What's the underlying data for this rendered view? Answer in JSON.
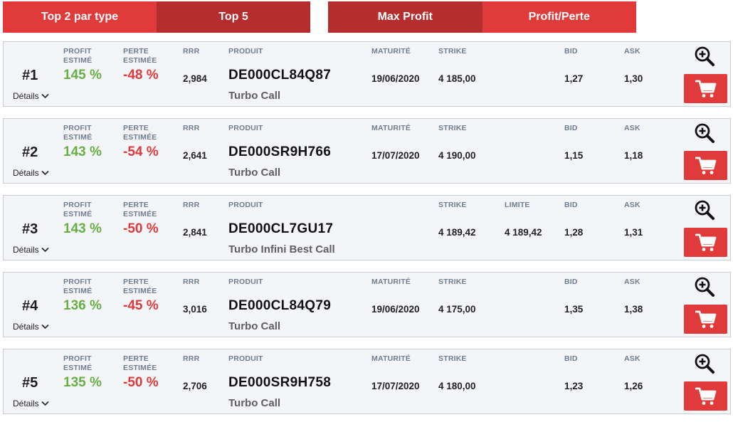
{
  "tabs": {
    "top2": "Top 2 par type",
    "top5": "Top 5",
    "maxprofit": "Max Profit",
    "profitperte": "Profit/Perte"
  },
  "labels": {
    "profit": "PROFIT",
    "profit2": "ESTIMÉ",
    "perte": "PERTE",
    "perte2": "ESTIMÉE",
    "rrr": "RRR",
    "produit": "PRODUIT",
    "maturite": "MATURITÉ",
    "strike": "STRIKE",
    "limite": "LIMITE",
    "bid": "BID",
    "ask": "ASK",
    "details": "Détails"
  },
  "rows": [
    {
      "rank": "#1",
      "profit": "145 %",
      "perte": "-48 %",
      "rrr": "2,984",
      "code": "DE000CL84Q87",
      "type": "Turbo Call",
      "maturite": "19/06/2020",
      "strike": "4 185,00",
      "limite": "",
      "bid": "1,27",
      "ask": "1,30"
    },
    {
      "rank": "#2",
      "profit": "143 %",
      "perte": "-54 %",
      "rrr": "2,641",
      "code": "DE000SR9H766",
      "type": "Turbo Call",
      "maturite": "17/07/2020",
      "strike": "4 190,00",
      "limite": "",
      "bid": "1,15",
      "ask": "1,18"
    },
    {
      "rank": "#3",
      "profit": "143 %",
      "perte": "-50 %",
      "rrr": "2,841",
      "code": "DE000CL7GU17",
      "type": "Turbo Infini Best Call",
      "maturite": "",
      "strike": "4 189,42",
      "limite": "4 189,42",
      "bid": "1,28",
      "ask": "1,31"
    },
    {
      "rank": "#4",
      "profit": "136 %",
      "perte": "-45 %",
      "rrr": "3,016",
      "code": "DE000CL84Q79",
      "type": "Turbo Call",
      "maturite": "19/06/2020",
      "strike": "4 175,00",
      "limite": "",
      "bid": "1,35",
      "ask": "1,38"
    },
    {
      "rank": "#5",
      "profit": "135 %",
      "perte": "-50 %",
      "rrr": "2,706",
      "code": "DE000SR9H758",
      "type": "Turbo Call",
      "maturite": "17/07/2020",
      "strike": "4 180,00",
      "limite": "",
      "bid": "1,23",
      "ask": "1,26"
    }
  ],
  "colors": {
    "accent": "#e03a3a",
    "accent_dark": "#b52d2d",
    "profit": "#66b043",
    "loss": "#dd3b3b"
  },
  "icons": {
    "zoom": "zoom-in-icon",
    "cart": "cart-icon",
    "chevron": "chevron-down-icon"
  }
}
